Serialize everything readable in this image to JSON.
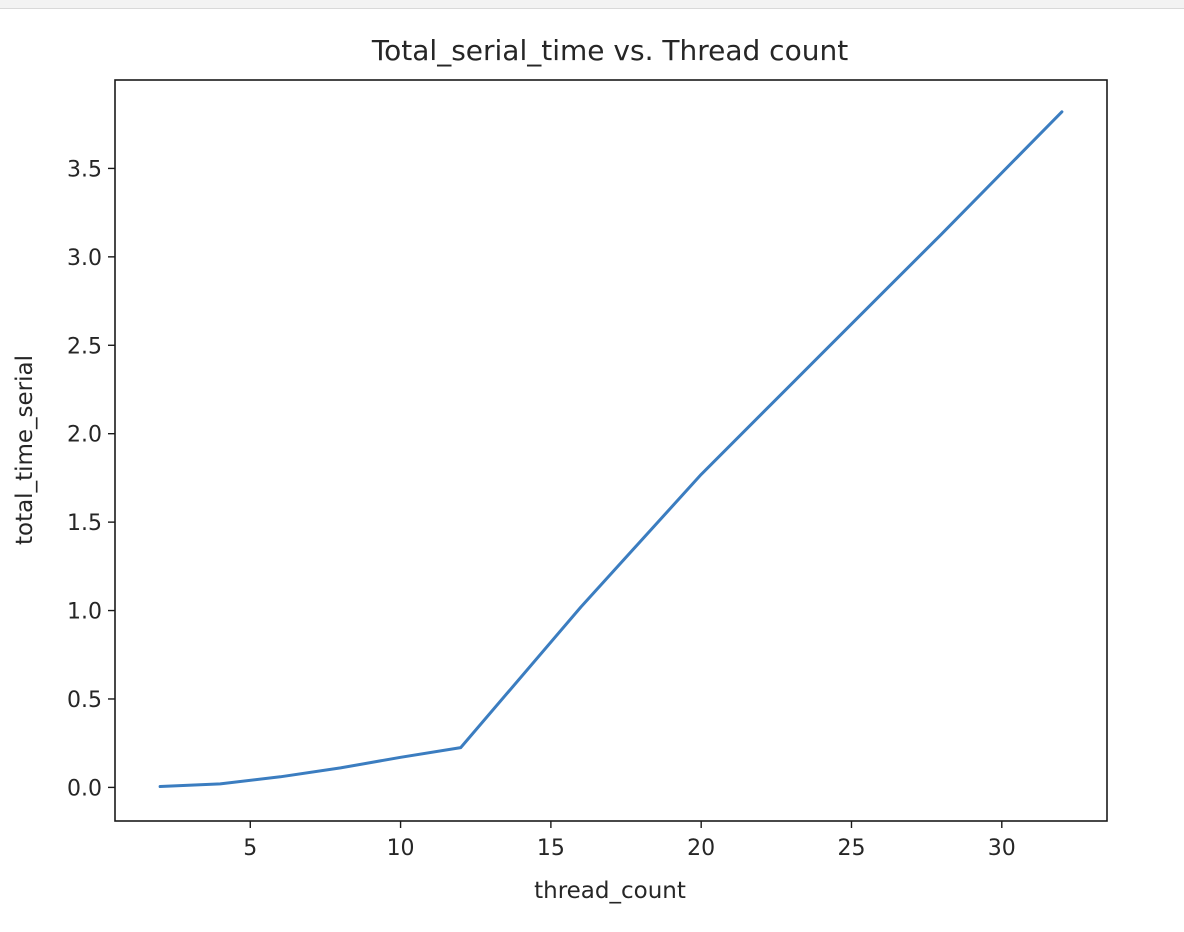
{
  "chart_data": {
    "type": "line",
    "title": "Total_serial_time vs. Thread count",
    "xlabel": "thread_count",
    "ylabel": "total_time_serial",
    "xlim": [
      0.5,
      33.5
    ],
    "ylim": [
      -0.19,
      4.0
    ],
    "x_ticks": [
      "5",
      "10",
      "15",
      "20",
      "25",
      "30"
    ],
    "y_ticks": [
      "0.0",
      "0.5",
      "1.0",
      "1.5",
      "2.0",
      "2.5",
      "3.0",
      "3.5"
    ],
    "grid": false,
    "line_color": "#3b7dc0",
    "series": [
      {
        "x": [
          2,
          4,
          6,
          8,
          10,
          12,
          16,
          20,
          24,
          28,
          32
        ],
        "values": [
          0.005,
          0.02,
          0.06,
          0.11,
          0.17,
          0.225,
          1.02,
          1.77,
          2.45,
          3.13,
          3.82
        ]
      }
    ]
  }
}
